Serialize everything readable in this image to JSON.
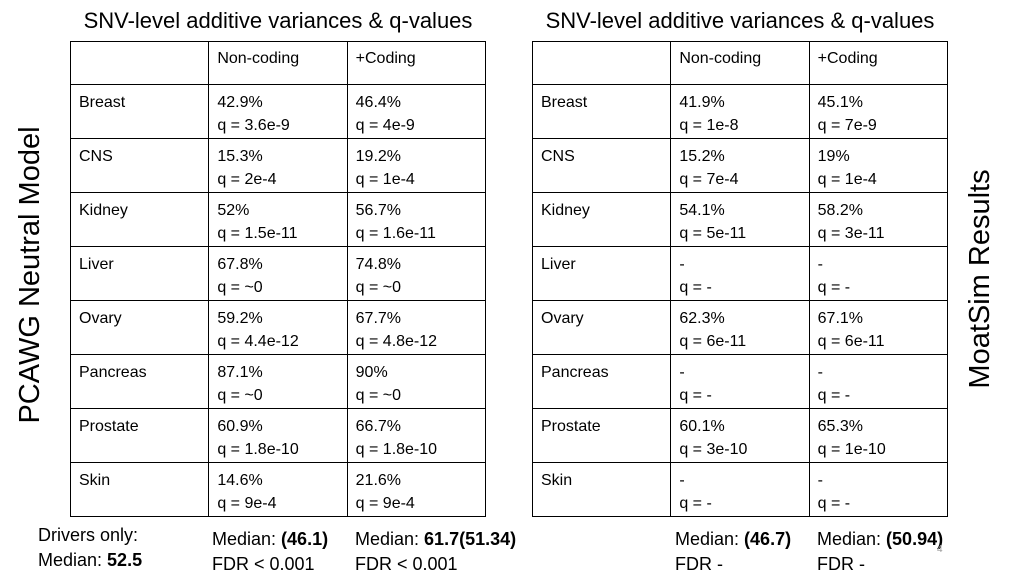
{
  "left": {
    "title": "SNV-level additive variances & q-values",
    "side_label": "PCAWG Neutral Model",
    "headers": [
      "",
      "Non-coding",
      "+Coding"
    ],
    "rows": [
      {
        "tissue": "Breast",
        "nc_pct": "42.9%",
        "nc_q": "q = 3.6e-9",
        "c_pct": "46.4%",
        "c_q": "q = 4e-9"
      },
      {
        "tissue": "CNS",
        "nc_pct": "15.3%",
        "nc_q": "q = 2e-4",
        "c_pct": "19.2%",
        "c_q": "q = 1e-4"
      },
      {
        "tissue": "Kidney",
        "nc_pct": "52%",
        "nc_q": "q = 1.5e-11",
        "c_pct": "56.7%",
        "c_q": "q = 1.6e-11"
      },
      {
        "tissue": "Liver",
        "nc_pct": "67.8%",
        "nc_q": "q = ~0",
        "c_pct": "74.8%",
        "c_q": "q = ~0"
      },
      {
        "tissue": "Ovary",
        "nc_pct": "59.2%",
        "nc_q": "q = 4.4e-12",
        "c_pct": "67.7%",
        "c_q": "q = 4.8e-12"
      },
      {
        "tissue": "Pancreas",
        "nc_pct": "87.1%",
        "nc_q": "q = ~0",
        "c_pct": "90%",
        "c_q": "q = ~0"
      },
      {
        "tissue": "Prostate",
        "nc_pct": "60.9%",
        "nc_q": "q = 1.8e-10",
        "c_pct": "66.7%",
        "c_q": "q = 1.8e-10"
      },
      {
        "tissue": "Skin",
        "nc_pct": "14.6%",
        "nc_q": "q = 9e-4",
        "c_pct": "21.6%",
        "c_q": "q = 9e-4"
      }
    ],
    "footer": {
      "drivers_line1": "Drivers only:",
      "drivers_prefix": "Median: ",
      "drivers_value": "52.5",
      "nc_prefix": "Median: ",
      "nc_value": "(46.1)",
      "nc_fdr": "FDR < 0.001",
      "c_prefix": "Median: ",
      "c_value": "61.7(51.34)",
      "c_fdr": "FDR < 0.001"
    }
  },
  "right": {
    "title": "SNV-level additive variances & q-values",
    "side_label": "MoatSim Results",
    "headers": [
      "",
      "Non-coding",
      "+Coding"
    ],
    "rows": [
      {
        "tissue": "Breast",
        "nc_pct": "41.9%",
        "nc_q": "q = 1e-8",
        "c_pct": "45.1%",
        "c_q": "q = 7e-9"
      },
      {
        "tissue": "CNS",
        "nc_pct": "15.2%",
        "nc_q": "q = 7e-4",
        "c_pct": "19%",
        "c_q": "q = 1e-4"
      },
      {
        "tissue": "Kidney",
        "nc_pct": "54.1%",
        "nc_q": "q = 5e-11",
        "c_pct": "58.2%",
        "c_q": "q = 3e-11"
      },
      {
        "tissue": "Liver",
        "nc_pct": "-",
        "nc_q": "q = -",
        "c_pct": "-",
        "c_q": "q = -"
      },
      {
        "tissue": "Ovary",
        "nc_pct": "62.3%",
        "nc_q": "q = 6e-11",
        "c_pct": "67.1%",
        "c_q": "q = 6e-11"
      },
      {
        "tissue": "Pancreas",
        "nc_pct": "-",
        "nc_q": "q = -",
        "c_pct": "-",
        "c_q": "q = -"
      },
      {
        "tissue": "Prostate",
        "nc_pct": "60.1%",
        "nc_q": "q = 3e-10",
        "c_pct": "65.3%",
        "c_q": "q = 1e-10"
      },
      {
        "tissue": "Skin",
        "nc_pct": "-",
        "nc_q": "q = -",
        "c_pct": "-",
        "c_q": "q = -"
      }
    ],
    "footer": {
      "nc_prefix": "Median: ",
      "nc_value": "(46.7)",
      "nc_fdr": "FDR -",
      "c_prefix": "Median: ",
      "c_value": "(50.94)",
      "c_fdr": "FDR -"
    }
  },
  "slide_number": "4"
}
